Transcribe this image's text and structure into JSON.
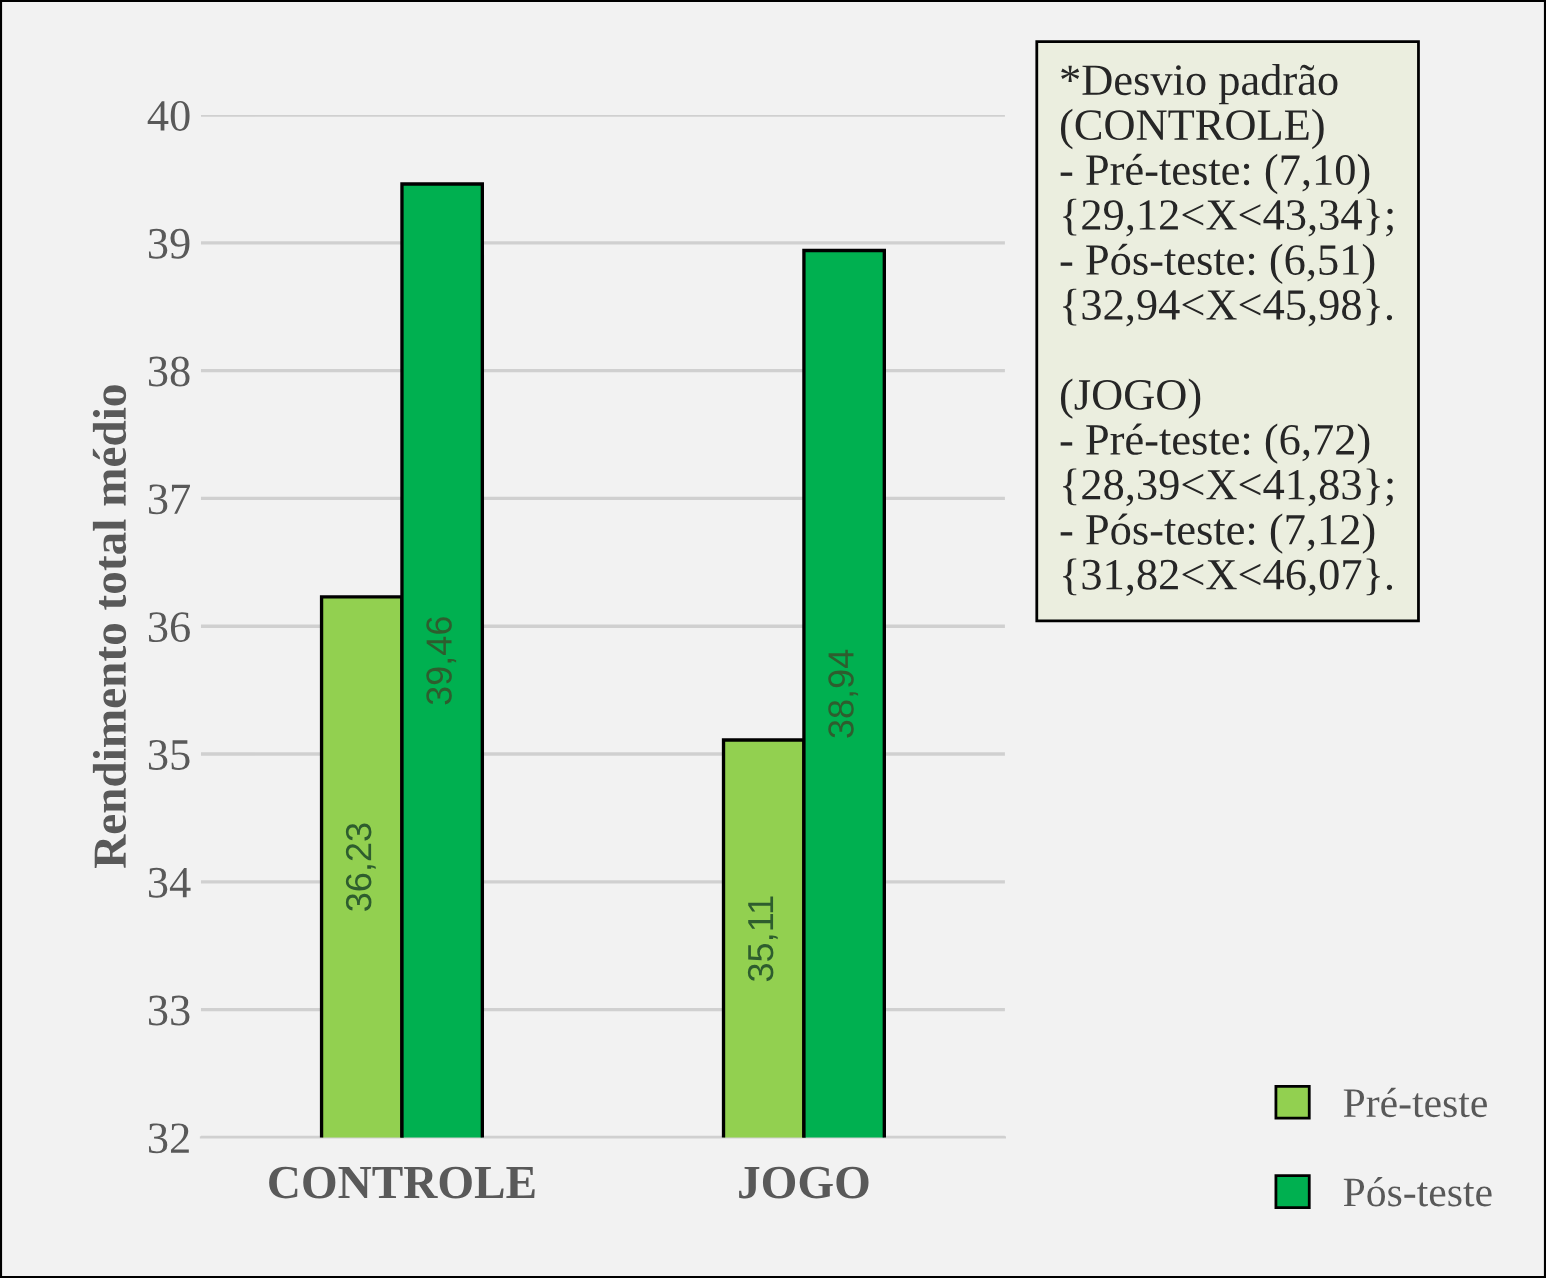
{
  "chart_data": {
    "type": "bar",
    "ylabel": "Rendimento total médio",
    "categories": [
      "CONTROLE",
      "JOGO"
    ],
    "series": [
      {
        "name": "Pré-teste",
        "color": "#92d050",
        "values": [
          36.23,
          35.11
        ],
        "value_labels": [
          "36,23",
          "35,11"
        ]
      },
      {
        "name": "Pós-teste",
        "color": "#00b050",
        "values": [
          39.46,
          38.94
        ],
        "value_labels": [
          "39,46",
          "38,94"
        ]
      }
    ],
    "ylim": [
      32,
      40
    ],
    "yticks": [
      32,
      33,
      34,
      35,
      36,
      37,
      38,
      39,
      40
    ],
    "grid": "y",
    "legend": "bottom right",
    "annotations": [
      "*Desvio padrão\n(CONTROLE)\n- Pré-teste: (7,10)\n{29,12<X<43,34};\n- Pós-teste: (6,51)\n{32,94<X<45,98}.\n\n(JOGO)\n- Pré-teste: (6,72)\n{28,39<X<41,83};\n- Pós-teste: (7,12)\n{31,82<X<46,07}."
    ]
  }
}
